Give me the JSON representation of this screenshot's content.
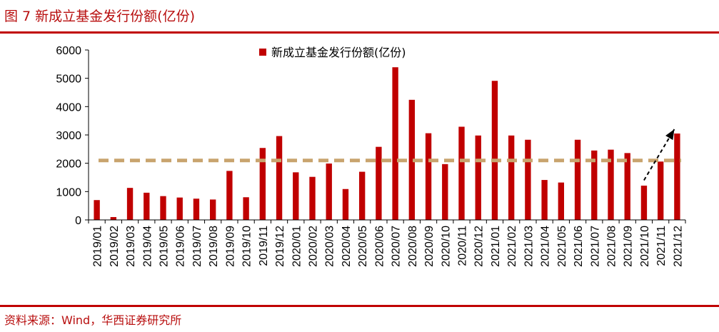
{
  "figure": {
    "title": "图 7 新成立基金发行份额(亿份)",
    "source": "资料来源：Wind，华西证券研究所"
  },
  "colors": {
    "bar": "#c00000",
    "average_line": "#c8a46e",
    "accent": "#c00000"
  },
  "chart_data": {
    "type": "bar",
    "categories": [
      "2019/01",
      "2019/02",
      "2019/03",
      "2019/04",
      "2019/05",
      "2019/06",
      "2019/07",
      "2019/08",
      "2019/09",
      "2019/10",
      "2019/11",
      "2019/12",
      "2020/01",
      "2020/02",
      "2020/03",
      "2020/04",
      "2020/05",
      "2020/06",
      "2020/07",
      "2020/08",
      "2020/09",
      "2020/10",
      "2020/11",
      "2020/12",
      "2021/01",
      "2021/02",
      "2021/03",
      "2021/04",
      "2021/05",
      "2021/06",
      "2021/07",
      "2021/08",
      "2021/09",
      "2021/10",
      "2021/11",
      "2021/12"
    ],
    "series": [
      {
        "name": "新成立基金发行份额(亿份)",
        "values": [
          700,
          100,
          1130,
          960,
          840,
          790,
          750,
          720,
          1730,
          800,
          2540,
          2960,
          1680,
          1520,
          1990,
          1090,
          1700,
          2580,
          5390,
          4240,
          3060,
          1970,
          3290,
          2980,
          4910,
          2980,
          2830,
          1410,
          1320,
          2830,
          2450,
          2480,
          2360,
          1210,
          2060,
          3050
        ]
      }
    ],
    "reference_line": {
      "value": 2100,
      "style": "dashed"
    },
    "annotation": {
      "type": "arrow",
      "from_category": "2021/10",
      "to_category": "2021/12",
      "from_value": 1400,
      "to_value": 3200,
      "style": "dashed"
    },
    "ylim": [
      0,
      6000
    ],
    "yticks": [
      0,
      1000,
      2000,
      3000,
      4000,
      5000,
      6000
    ],
    "legend_position": "top-center",
    "grid": false
  }
}
